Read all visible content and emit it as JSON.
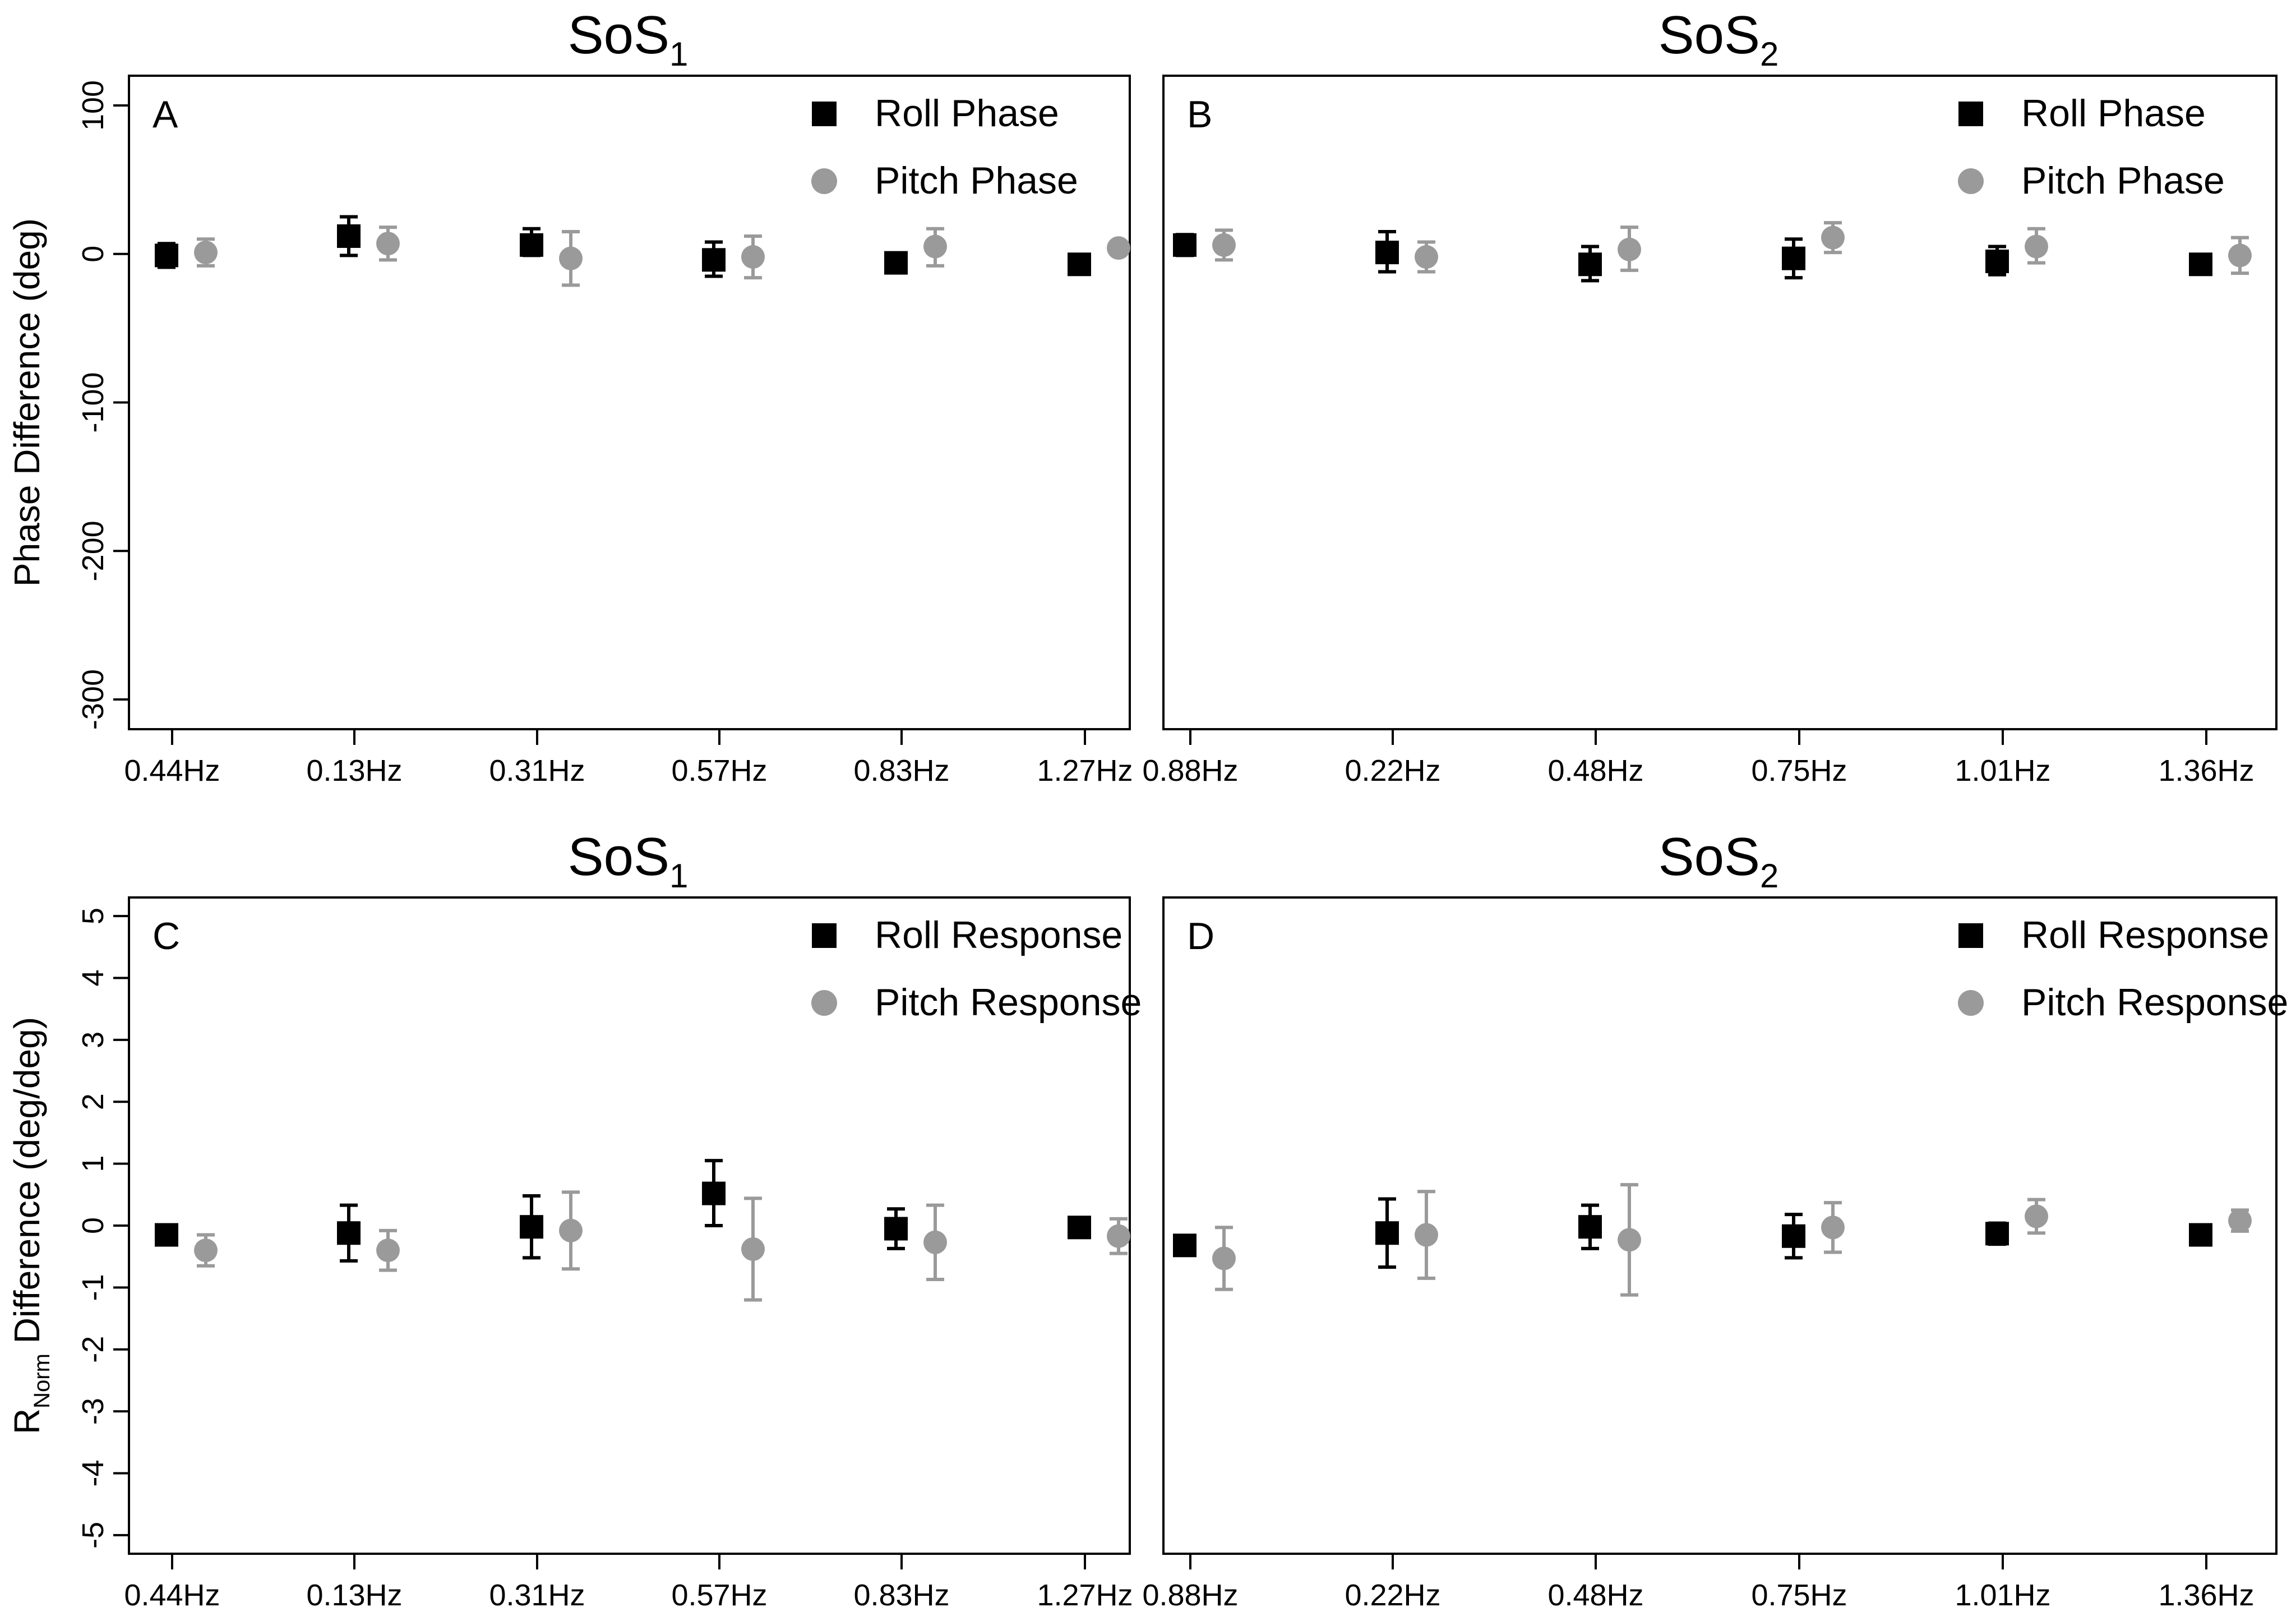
{
  "chart_data": [
    {
      "panel": "A",
      "title": "SoS",
      "title_sub": "1",
      "type": "scatter",
      "ylabel": "Phase Difference (deg)",
      "ylim": [
        -320,
        120
      ],
      "yticks": [
        100,
        0,
        -100,
        -200,
        -300
      ],
      "categories": [
        "0.44Hz",
        "0.13Hz",
        "0.31Hz",
        "0.57Hz",
        "0.83Hz",
        "1.27Hz"
      ],
      "series": [
        {
          "name": "Roll Phase",
          "color": "#000000",
          "marker": "square",
          "values": [
            -1,
            12,
            6,
            -4,
            -6,
            -7
          ],
          "err_low": [
            -9,
            -1,
            -1,
            -15,
            -9,
            -9
          ],
          "err_high": [
            7,
            25,
            17,
            8,
            -3,
            -5
          ]
        },
        {
          "name": "Pitch Phase",
          "color": "#9a9a9a",
          "marker": "circle",
          "values": [
            1,
            7,
            -3,
            -2,
            5,
            4
          ],
          "err_low": [
            -8,
            -4,
            -21,
            -16,
            -8,
            1
          ],
          "err_high": [
            10,
            18,
            15,
            12,
            17,
            7
          ]
        }
      ]
    },
    {
      "panel": "B",
      "title": "SoS",
      "title_sub": "2",
      "type": "scatter",
      "ylabel": "",
      "ylim": [
        -320,
        120
      ],
      "yticks": [],
      "categories": [
        "0.88Hz",
        "0.22Hz",
        "0.48Hz",
        "0.75Hz",
        "1.01Hz",
        "1.36Hz"
      ],
      "series": [
        {
          "name": "Roll Phase",
          "color": "#000000",
          "marker": "square",
          "values": [
            6,
            1,
            -7,
            -3,
            -5,
            -7
          ],
          "err_low": [
            -1,
            -12,
            -18,
            -16,
            -14,
            -10
          ],
          "err_high": [
            13,
            15,
            5,
            10,
            5,
            -4
          ]
        },
        {
          "name": "Pitch Phase",
          "color": "#9a9a9a",
          "marker": "circle",
          "values": [
            6,
            -2,
            3,
            11,
            5,
            -1
          ],
          "err_low": [
            -4,
            -12,
            -11,
            1,
            -6,
            -13
          ],
          "err_high": [
            16,
            8,
            18,
            21,
            17,
            11
          ]
        }
      ]
    },
    {
      "panel": "C",
      "title": "SoS",
      "title_sub": "1",
      "type": "scatter",
      "ylabel_main": "R",
      "ylabel_sub": "Norm",
      "ylabel_rest": " Difference (deg/deg)",
      "ylim": [
        -5.3,
        5.3
      ],
      "yticks": [
        5,
        4,
        3,
        2,
        1,
        0,
        -1,
        -2,
        -3,
        -4,
        -5
      ],
      "categories": [
        "0.44Hz",
        "0.13Hz",
        "0.31Hz",
        "0.57Hz",
        "0.83Hz",
        "1.27Hz"
      ],
      "series": [
        {
          "name": "Roll Response",
          "color": "#000000",
          "marker": "square",
          "values": [
            -0.15,
            -0.12,
            -0.02,
            0.52,
            -0.05,
            -0.03
          ],
          "err_low": [
            -0.25,
            -0.57,
            -0.52,
            0.0,
            -0.37,
            -0.08
          ],
          "err_high": [
            -0.05,
            0.33,
            0.48,
            1.05,
            0.27,
            0.02
          ]
        },
        {
          "name": "Pitch Response",
          "color": "#9a9a9a",
          "marker": "circle",
          "values": [
            -0.4,
            -0.4,
            -0.08,
            -0.38,
            -0.27,
            -0.17
          ],
          "err_low": [
            -0.65,
            -0.72,
            -0.7,
            -1.2,
            -0.87,
            -0.45
          ],
          "err_high": [
            -0.15,
            -0.08,
            0.54,
            0.44,
            0.33,
            0.11
          ]
        }
      ]
    },
    {
      "panel": "D",
      "title": "SoS",
      "title_sub": "2",
      "type": "scatter",
      "ylabel": "",
      "ylim": [
        -5.3,
        5.3
      ],
      "yticks": [],
      "categories": [
        "0.88Hz",
        "0.22Hz",
        "0.48Hz",
        "0.75Hz",
        "1.01Hz",
        "1.36Hz"
      ],
      "series": [
        {
          "name": "Roll Response",
          "color": "#000000",
          "marker": "square",
          "values": [
            -0.32,
            -0.12,
            -0.02,
            -0.17,
            -0.13,
            -0.15
          ],
          "err_low": [
            -0.42,
            -0.67,
            -0.37,
            -0.52,
            -0.3,
            -0.2
          ],
          "err_high": [
            -0.22,
            0.43,
            0.33,
            0.18,
            0.04,
            -0.1
          ]
        },
        {
          "name": "Pitch Response",
          "color": "#9a9a9a",
          "marker": "circle",
          "values": [
            -0.53,
            -0.15,
            -0.23,
            -0.03,
            0.15,
            0.08
          ],
          "err_low": [
            -1.03,
            -0.85,
            -1.12,
            -0.43,
            -0.12,
            -0.09
          ],
          "err_high": [
            -0.03,
            0.55,
            0.66,
            0.37,
            0.42,
            0.25
          ]
        }
      ]
    }
  ]
}
